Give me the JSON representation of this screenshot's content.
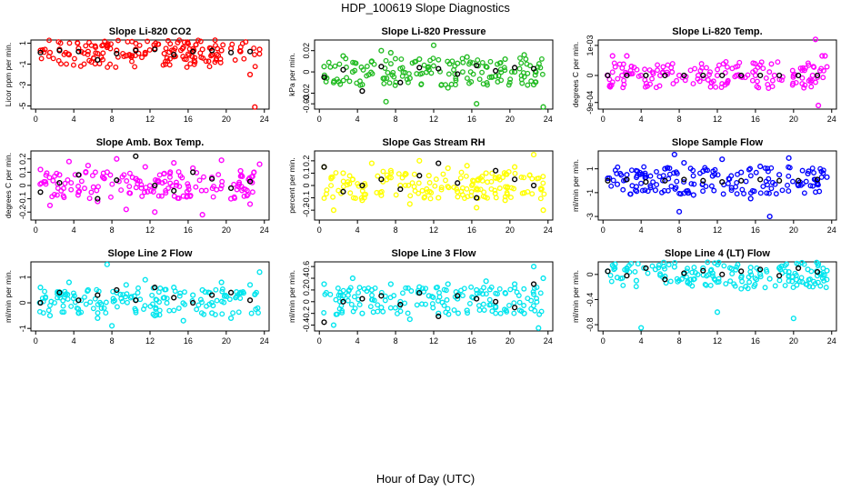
{
  "page": {
    "title": "HDP_100619  Slope Diagnostics",
    "xlabel": "Hour of Day (UTC)"
  },
  "colors": {
    "red": "#ff0000",
    "green": "#22bb22",
    "magenta": "#ff00ff",
    "yellow": "#ffff00",
    "blue": "#0000ff",
    "cyan": "#00e5ee",
    "black": "#000000"
  },
  "chart_data": [
    {
      "type": "scatter",
      "title": "Slope Li-820 CO2",
      "ylabel": "Licor ppm per min.",
      "xlabel": "Hour of Day (UTC)",
      "color": "red",
      "xlim": [
        -0.5,
        24.5
      ],
      "xticks": [
        0,
        4,
        8,
        12,
        16,
        20,
        24
      ],
      "ylim": [
        -5.3,
        1.3
      ],
      "yticks": [
        1,
        -1,
        -3,
        -5
      ],
      "series": [
        {
          "name": "samples",
          "color": "red",
          "x": [
            0.5,
            1.5,
            2.5,
            3.5,
            4.5,
            5.5,
            6.5,
            7.5,
            8.5,
            9.5,
            10.5,
            11.5,
            12.5,
            13.5,
            14.5,
            15.5,
            16.5,
            17.5,
            18.5,
            19.5,
            20.5,
            21.5,
            22.5,
            23.0,
            23.5
          ],
          "y": [
            0.3,
            0.1,
            0.4,
            -0.1,
            0.5,
            0.2,
            0.0,
            0.6,
            0.3,
            -0.2,
            0.4,
            0.1,
            0.5,
            0.0,
            0.3,
            0.6,
            0.2,
            0.4,
            -0.1,
            0.3,
            0.5,
            0.2,
            -2.0,
            -5.1,
            0.4
          ]
        },
        {
          "name": "hourly",
          "color": "black",
          "x": [
            0.5,
            2.5,
            4.5,
            6.5,
            8.5,
            10.5,
            12.5,
            14.5,
            16.5,
            18.5,
            20.5,
            22.5
          ],
          "y": [
            0.1,
            0.3,
            0.2,
            -0.6,
            0.0,
            0.3,
            0.4,
            -0.1,
            0.2,
            0.3,
            0.1,
            0.2
          ]
        }
      ]
    },
    {
      "type": "scatter",
      "title": "Slope Li-820 Pressure",
      "ylabel": "kPa per min.",
      "xlabel": "Hour of Day (UTC)",
      "color": "green",
      "xlim": [
        -0.5,
        24.5
      ],
      "xticks": [
        0,
        4,
        8,
        12,
        16,
        20,
        24
      ],
      "ylim": [
        -0.035,
        0.03
      ],
      "yticks": [
        0.02,
        0.0,
        -0.02,
        -0.03
      ],
      "series": [
        {
          "name": "samples",
          "color": "green",
          "x": [
            0.5,
            1.5,
            2.5,
            3.5,
            4.5,
            5.5,
            6.5,
            7.0,
            7.5,
            8.5,
            9.5,
            10.5,
            11.5,
            12.0,
            13.5,
            14.5,
            15.5,
            16.5,
            17.5,
            18.5,
            19.5,
            20.5,
            21.5,
            22.5,
            23.5
          ],
          "y": [
            0.005,
            -0.01,
            0.015,
            0.0,
            -0.012,
            0.01,
            0.02,
            -0.028,
            0.018,
            0.003,
            -0.006,
            0.012,
            0.002,
            0.025,
            -0.015,
            0.008,
            0.014,
            -0.03,
            0.005,
            -0.004,
            0.012,
            0.0,
            0.016,
            -0.012,
            -0.033
          ]
        },
        {
          "name": "hourly",
          "color": "black",
          "x": [
            0.5,
            2.5,
            4.5,
            6.5,
            8.5,
            10.5,
            12.5,
            14.5,
            16.5,
            18.5,
            20.5,
            22.5
          ],
          "y": [
            -0.005,
            0.002,
            -0.018,
            0.005,
            -0.01,
            0.004,
            0.003,
            -0.002,
            0.006,
            0.001,
            0.004,
            0.003
          ]
        }
      ]
    },
    {
      "type": "scatter",
      "title": "Slope Li-820 Temp.",
      "ylabel": "degrees C per min.",
      "xlabel": "Hour of Day (UTC)",
      "color": "magenta",
      "xlim": [
        -0.5,
        24.5
      ],
      "xticks": [
        0,
        4,
        8,
        12,
        16,
        20,
        24
      ],
      "ylim": [
        -0.00112,
        0.00118
      ],
      "yticks": [
        0.001,
        0.0,
        -0.0009
      ],
      "ytick_labels": [
        "1e-03",
        "0",
        "-9e-04"
      ],
      "series": [
        {
          "name": "samples",
          "color": "magenta",
          "x": [
            0.5,
            1.0,
            2.0,
            2.5,
            4.0,
            6.0,
            8.0,
            10.0,
            12.0,
            14.0,
            16.0,
            18.0,
            20.0,
            22.0,
            22.3,
            22.6,
            23.0,
            23.3
          ],
          "y": [
            0.0,
            0.00065,
            0.0,
            0.00065,
            0.0,
            0.0,
            0.0,
            0.0,
            0.0,
            0.0,
            0.0,
            0.0,
            0.0,
            0.0,
            0.0012,
            -0.001,
            0.00065,
            0.00065
          ]
        },
        {
          "name": "hourly",
          "color": "black",
          "x": [
            0.5,
            2.5,
            4.5,
            6.5,
            8.5,
            10.5,
            12.5,
            14.5,
            16.5,
            18.5,
            20.5,
            22.5
          ],
          "y": [
            0,
            0,
            0,
            0,
            0,
            0,
            0,
            0,
            0,
            0,
            0,
            0
          ]
        }
      ]
    },
    {
      "type": "scatter",
      "title": "Slope Amb. Box Temp.",
      "ylabel": "degrees C per min.",
      "xlabel": "Hour of Day (UTC)",
      "color": "magenta",
      "xlim": [
        -0.5,
        24.5
      ],
      "xticks": [
        0,
        4,
        8,
        12,
        16,
        20,
        24
      ],
      "ylim": [
        -0.26,
        0.26
      ],
      "yticks": [
        0.2,
        0.1,
        0.0,
        -0.1,
        -0.2
      ],
      "series": [
        {
          "name": "samples",
          "color": "magenta",
          "x": [
            0.5,
            1.5,
            2.5,
            3.5,
            4.5,
            5.5,
            6.5,
            7.5,
            8.5,
            9.5,
            10.5,
            11.5,
            12.5,
            13.5,
            14.5,
            15.5,
            16.5,
            17.5,
            18.5,
            19.5,
            20.5,
            21.5,
            22.5,
            23.5
          ],
          "y": [
            0.12,
            -0.15,
            0.08,
            0.18,
            -0.05,
            0.15,
            -0.12,
            0.1,
            0.2,
            -0.18,
            0.05,
            0.14,
            -0.2,
            0.09,
            0.17,
            -0.08,
            0.13,
            -0.22,
            0.06,
            0.19,
            -0.1,
            0.11,
            -0.14,
            0.16
          ]
        },
        {
          "name": "hourly",
          "color": "black",
          "x": [
            0.5,
            2.5,
            4.5,
            6.5,
            8.5,
            10.5,
            12.5,
            14.5,
            16.5,
            18.5,
            20.5,
            22.5
          ],
          "y": [
            -0.05,
            0.02,
            0.08,
            -0.1,
            0.04,
            0.22,
            0.0,
            -0.04,
            0.1,
            0.05,
            -0.02,
            0.03
          ]
        }
      ]
    },
    {
      "type": "scatter",
      "title": "Slope Gas Stream RH",
      "ylabel": "percent per min.",
      "xlabel": "Hour of Day (UTC)",
      "color": "yellow",
      "xlim": [
        -0.5,
        24.5
      ],
      "xticks": [
        0,
        4,
        8,
        12,
        16,
        20,
        24
      ],
      "ylim": [
        -0.28,
        0.28
      ],
      "yticks": [
        0.2,
        0.1,
        0.0,
        -0.1,
        -0.2
      ],
      "series": [
        {
          "name": "samples",
          "color": "yellow",
          "x": [
            0.5,
            1.5,
            2.5,
            3.5,
            4.5,
            5.5,
            6.5,
            7.5,
            8.5,
            9.5,
            10.5,
            11.5,
            12.5,
            13.5,
            14.5,
            15.5,
            16.5,
            17.5,
            18.5,
            19.5,
            20.5,
            21.5,
            22.5,
            23.5
          ],
          "y": [
            0.15,
            -0.2,
            0.1,
            0.05,
            -0.12,
            0.18,
            -0.08,
            0.12,
            0.0,
            -0.15,
            0.2,
            0.08,
            -0.1,
            0.14,
            -0.05,
            0.16,
            -0.18,
            0.1,
            0.06,
            -0.12,
            0.15,
            -0.06,
            0.25,
            -0.2
          ]
        },
        {
          "name": "hourly",
          "color": "black",
          "x": [
            0.5,
            2.5,
            4.5,
            6.5,
            8.5,
            10.5,
            12.5,
            14.5,
            16.5,
            18.5,
            20.5,
            22.5
          ],
          "y": [
            0.15,
            -0.05,
            0.0,
            0.05,
            -0.03,
            0.08,
            0.18,
            0.02,
            -0.1,
            0.12,
            0.05,
            0.0
          ]
        }
      ]
    },
    {
      "type": "scatter",
      "title": "Slope Sample Flow",
      "ylabel": "ml/min per min.",
      "xlabel": "Hour of Day (UTC)",
      "color": "blue",
      "xlim": [
        -0.5,
        24.5
      ],
      "xticks": [
        0,
        4,
        8,
        12,
        16,
        20,
        24
      ],
      "ylim": [
        -3.3,
        2.5
      ],
      "yticks": [
        1,
        -1,
        -3
      ],
      "series": [
        {
          "name": "samples",
          "color": "blue",
          "x": [
            0.5,
            1.5,
            2.5,
            3.5,
            4.5,
            5.5,
            6.5,
            7.5,
            8.0,
            8.5,
            9.5,
            10.5,
            11.5,
            12.5,
            13.5,
            14.5,
            15.5,
            16.5,
            17.5,
            18.5,
            19.5,
            20.5,
            21.5,
            22.5,
            23.5
          ],
          "y": [
            0.2,
            -0.3,
            0.5,
            -0.5,
            0.3,
            -0.8,
            1.0,
            2.2,
            -2.6,
            1.5,
            -1.2,
            0.8,
            0.4,
            1.8,
            -0.6,
            0.7,
            -1.5,
            1.2,
            -3.0,
            0.5,
            1.9,
            -0.4,
            0.6,
            -0.2,
            0.3
          ]
        },
        {
          "name": "hourly",
          "color": "black",
          "x": [
            0.5,
            2.5,
            4.5,
            6.5,
            8.5,
            10.5,
            12.5,
            14.5,
            16.5,
            18.5,
            20.5,
            22.5
          ],
          "y": [
            0.0,
            0.1,
            -0.1,
            0.0,
            0.1,
            0.0,
            -0.1,
            0.0,
            0.1,
            0.0,
            0.0,
            0.1
          ]
        }
      ]
    },
    {
      "type": "scatter",
      "title": "Slope Line 2 Flow",
      "ylabel": "ml/min per min.",
      "xlabel": "Hour of Day (UTC)",
      "color": "cyan",
      "xlim": [
        -0.5,
        24.5
      ],
      "xticks": [
        0,
        4,
        8,
        12,
        16,
        20,
        24
      ],
      "ylim": [
        -1.1,
        1.6
      ],
      "yticks": [
        1.0,
        0.0,
        -1.0
      ],
      "series": [
        {
          "name": "samples",
          "color": "cyan",
          "x": [
            0.5,
            1.5,
            2.5,
            3.5,
            4.5,
            5.5,
            6.5,
            7.5,
            8.0,
            8.5,
            9.5,
            10.5,
            11.5,
            12.5,
            13.5,
            14.5,
            15.5,
            16.5,
            17.5,
            18.5,
            19.5,
            20.5,
            21.5,
            22.5,
            23.5
          ],
          "y": [
            0.6,
            -0.5,
            0.3,
            0.8,
            -0.4,
            0.5,
            -0.6,
            1.5,
            -0.9,
            0.4,
            0.7,
            -0.3,
            0.9,
            -0.5,
            0.2,
            0.6,
            -0.7,
            0.3,
            0.5,
            -0.4,
            0.8,
            -0.6,
            0.4,
            0.7,
            1.2
          ]
        },
        {
          "name": "hourly",
          "color": "black",
          "x": [
            0.5,
            2.5,
            4.5,
            6.5,
            8.5,
            10.5,
            12.5,
            14.5,
            16.5,
            18.5,
            20.5,
            22.5
          ],
          "y": [
            0.0,
            0.4,
            0.1,
            0.3,
            0.5,
            0.1,
            0.6,
            0.2,
            0.0,
            0.3,
            0.4,
            0.1
          ]
        }
      ]
    },
    {
      "type": "scatter",
      "title": "Slope Line 3 Flow",
      "ylabel": "ml/min per min.",
      "xlabel": "Hour of Day (UTC)",
      "color": "cyan",
      "xlim": [
        -0.5,
        24.5
      ],
      "xticks": [
        0,
        4,
        8,
        12,
        16,
        20,
        24
      ],
      "ylim": [
        -0.5,
        0.68
      ],
      "yticks": [
        0.6,
        0.4,
        0.2,
        0.0,
        -0.2,
        -0.4
      ],
      "series": [
        {
          "name": "samples",
          "color": "cyan",
          "x": [
            0.5,
            1.5,
            2.5,
            3.5,
            4.5,
            5.5,
            6.5,
            7.5,
            8.5,
            9.5,
            10.5,
            11.5,
            12.5,
            13.5,
            14.5,
            15.5,
            16.5,
            17.5,
            18.5,
            19.5,
            20.5,
            21.5,
            22.5,
            23.0,
            23.5
          ],
          "y": [
            0.3,
            -0.4,
            0.1,
            0.4,
            -0.2,
            0.2,
            -0.1,
            0.3,
            0.0,
            -0.3,
            0.25,
            0.1,
            -0.2,
            0.3,
            0.05,
            -0.15,
            0.2,
            0.35,
            -0.1,
            0.15,
            0.3,
            -0.2,
            0.6,
            -0.45,
            0.4
          ]
        },
        {
          "name": "hourly",
          "color": "black",
          "x": [
            0.5,
            2.5,
            4.5,
            6.5,
            8.5,
            10.5,
            12.5,
            14.5,
            16.5,
            18.5,
            20.5,
            22.5
          ],
          "y": [
            -0.35,
            0.0,
            0.05,
            0.1,
            -0.05,
            0.15,
            -0.25,
            0.1,
            0.05,
            0.0,
            -0.1,
            0.3
          ]
        }
      ]
    },
    {
      "type": "scatter",
      "title": "Slope Line 4 (LT) Flow",
      "ylabel": "ml/min per min.",
      "xlabel": "Hour of Day (UTC)",
      "color": "cyan",
      "xlim": [
        -0.5,
        24.5
      ],
      "xticks": [
        0,
        4,
        8,
        12,
        16,
        20,
        24
      ],
      "ylim": [
        -0.9,
        0.2
      ],
      "yticks": [
        0.0,
        -0.4,
        -0.8
      ],
      "series": [
        {
          "name": "samples",
          "color": "cyan",
          "x": [
            0.5,
            1.5,
            2.5,
            3.5,
            4.0,
            5.5,
            6.5,
            7.5,
            8.5,
            9.5,
            10.5,
            11.5,
            12.0,
            13.5,
            14.5,
            15.5,
            16.5,
            17.5,
            18.5,
            19.5,
            20.0,
            21.5,
            22.5,
            23.5
          ],
          "y": [
            0.05,
            -0.05,
            0.1,
            -0.1,
            -0.85,
            0.08,
            -0.03,
            0.12,
            0.0,
            -0.08,
            0.1,
            0.02,
            -0.6,
            0.09,
            -0.05,
            0.11,
            0.0,
            -0.07,
            0.1,
            0.04,
            -0.7,
            0.08,
            -0.02,
            0.06
          ]
        },
        {
          "name": "hourly",
          "color": "black",
          "x": [
            0.5,
            2.5,
            4.5,
            6.5,
            8.5,
            10.5,
            12.5,
            14.5,
            16.5,
            18.5,
            20.5,
            22.5
          ],
          "y": [
            0.05,
            -0.02,
            0.1,
            -0.08,
            0.02,
            0.06,
            0.0,
            0.05,
            0.08,
            -0.02,
            0.1,
            0.04
          ]
        }
      ]
    }
  ]
}
